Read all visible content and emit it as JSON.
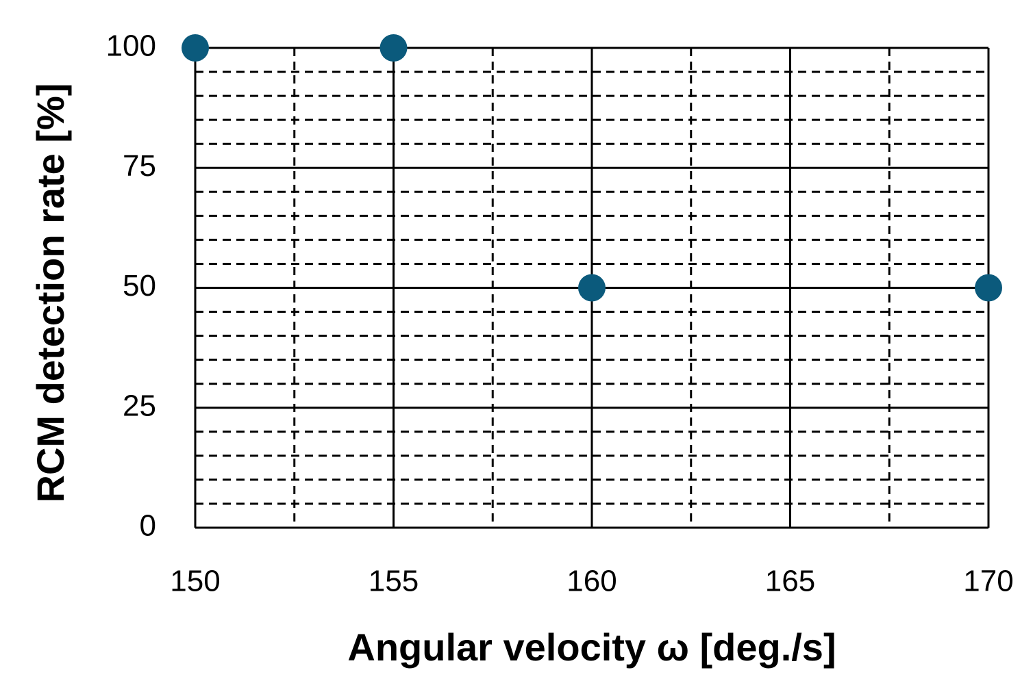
{
  "chart_data": {
    "type": "scatter",
    "x_label": "Angular velocity ω [deg./s]",
    "y_label": "RCM detection rate [%]",
    "series": [
      {
        "color": "#0b5a7c",
        "x": [
          150,
          155,
          160,
          170
        ],
        "values": [
          100,
          100,
          50,
          50
        ]
      }
    ],
    "xlim": [
      150,
      170
    ],
    "xticks": [
      150,
      155,
      160,
      165,
      170
    ],
    "x_minor_ticks": [
      152.5,
      157.5,
      162.5,
      167.5
    ],
    "ylim": [
      0,
      100
    ],
    "yticks": [
      0,
      25,
      50,
      75,
      100
    ],
    "y_minor_ticks": [
      5,
      10,
      15,
      20,
      30,
      35,
      40,
      45,
      55,
      60,
      65,
      70,
      80,
      85,
      90,
      95
    ],
    "grid": true
  }
}
